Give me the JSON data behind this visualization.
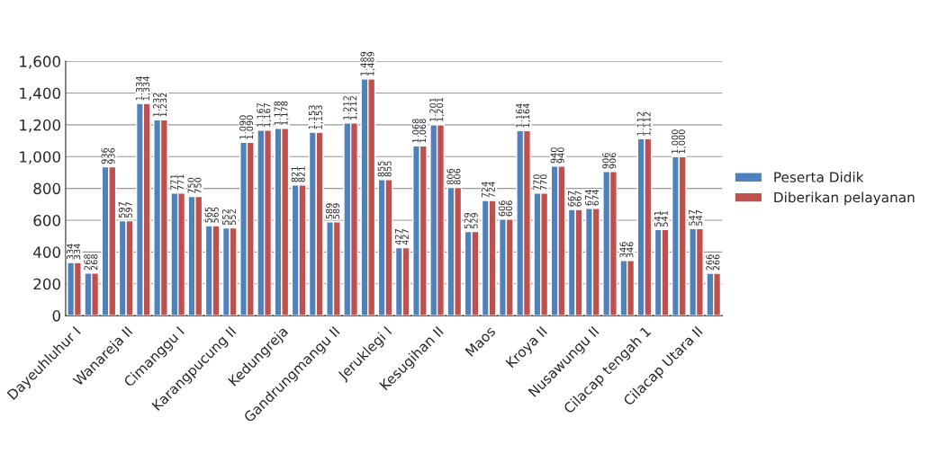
{
  "chart_data": {
    "type": "bar",
    "categories": [
      "Dayeuhluhur I",
      null,
      null,
      "Wanareja II",
      null,
      null,
      "Cimanggu I",
      null,
      null,
      "Karangpucung II",
      null,
      null,
      "Kedungreja",
      null,
      null,
      "Gandrungmangu II",
      null,
      null,
      "Jeruklegi I",
      null,
      null,
      "Kesugihan II",
      null,
      null,
      "Maos",
      null,
      null,
      "Kroya II",
      null,
      null,
      "Nusawungu II",
      null,
      null,
      "Cilacap tengah 1",
      null,
      null,
      "Cilacap Utara II",
      null
    ],
    "series": [
      {
        "name": "Peserta Didik",
        "color": "#4f81bd",
        "values": [
          334,
          268,
          936,
          597,
          1334,
          1232,
          771,
          750,
          565,
          552,
          1090,
          1167,
          1178,
          821,
          1153,
          589,
          1212,
          1489,
          855,
          427,
          1068,
          1201,
          806,
          529,
          724,
          606,
          1164,
          770,
          940,
          667,
          674,
          906,
          346,
          1112,
          541,
          1000,
          547,
          266
        ],
        "value_labels": [
          "334",
          "268",
          "936",
          "597",
          "1,334",
          "1,232",
          "771",
          "750",
          "565",
          "552",
          "1,090",
          "1,167",
          "1,178",
          "821",
          "1,153",
          "589",
          "1,212",
          "1,489",
          "855",
          "427",
          "1,068",
          "1,201",
          "806",
          "529",
          "724",
          "606",
          "1,164",
          "770",
          "940",
          "667",
          "674",
          "906",
          "346",
          "1,112",
          "541",
          "1,000",
          "547",
          "266"
        ]
      },
      {
        "name": "Diberikan pelayanan",
        "color": "#c0504d",
        "values": [
          334,
          268,
          936,
          597,
          1334,
          1232,
          771,
          750,
          565,
          552,
          1090,
          1167,
          1178,
          821,
          1153,
          589,
          1212,
          1489,
          855,
          427,
          1068,
          1201,
          806,
          529,
          724,
          606,
          1164,
          770,
          940,
          667,
          674,
          906,
          346,
          1112,
          541,
          1000,
          547,
          266
        ],
        "value_labels": [
          "334",
          "268",
          "936",
          "597",
          "1,334",
          "1,232",
          "771",
          "750",
          "565",
          "552",
          "1,090",
          "1,167",
          "1,178",
          "821",
          "1,153",
          "589",
          "1,212",
          "1,489",
          "855",
          "427",
          "1,068",
          "1,201",
          "806",
          "529",
          "724",
          "606",
          "1,164",
          "770",
          "940",
          "667",
          "674",
          "906",
          "346",
          "1,112",
          "541",
          "1,000",
          "547",
          "266"
        ]
      }
    ],
    "ylim": [
      0,
      1600
    ],
    "yticks": [
      0,
      200,
      400,
      600,
      800,
      {
        "value": 1000,
        "label": "1,000"
      },
      {
        "value": 1200,
        "label": "1,200"
      },
      {
        "value": 1400,
        "label": "1,400"
      },
      {
        "value": 1600,
        "label": "1,600"
      }
    ],
    "grid": "y",
    "legend": "right"
  }
}
